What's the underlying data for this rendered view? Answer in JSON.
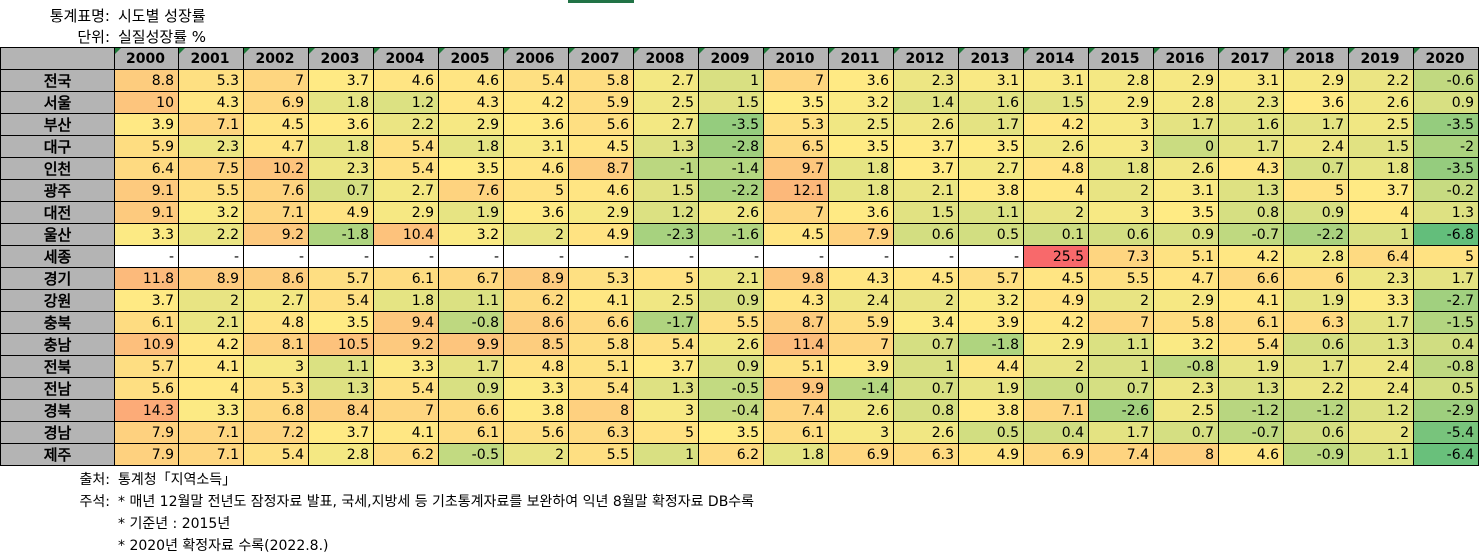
{
  "header": {
    "title_label": "통계표명:",
    "title_value": "시도별 성장률",
    "unit_label": "단위:",
    "unit_value": "실질성장률 %"
  },
  "corner": "",
  "years": [
    "2000",
    "2001",
    "2002",
    "2003",
    "2004",
    "2005",
    "2006",
    "2007",
    "2008",
    "2009",
    "2010",
    "2011",
    "2012",
    "2013",
    "2014",
    "2015",
    "2016",
    "2017",
    "2018",
    "2019",
    "2020"
  ],
  "rows": [
    {
      "region": "전국",
      "values": [
        "8.8",
        "5.3",
        "7",
        "3.7",
        "4.6",
        "4.6",
        "5.4",
        "5.8",
        "2.7",
        "1",
        "7",
        "3.6",
        "2.3",
        "3.1",
        "3.1",
        "2.8",
        "2.9",
        "3.1",
        "2.9",
        "2.2",
        "-0.6"
      ]
    },
    {
      "region": "서울",
      "values": [
        "10",
        "4.3",
        "6.9",
        "1.8",
        "1.2",
        "4.3",
        "4.2",
        "5.9",
        "2.5",
        "1.5",
        "3.5",
        "3.2",
        "1.4",
        "1.6",
        "1.5",
        "2.9",
        "2.8",
        "2.3",
        "3.6",
        "2.6",
        "0.9"
      ]
    },
    {
      "region": "부산",
      "values": [
        "3.9",
        "7.1",
        "4.5",
        "3.6",
        "2.2",
        "2.9",
        "3.6",
        "5.6",
        "2.7",
        "-3.5",
        "5.3",
        "2.5",
        "2.6",
        "1.7",
        "4.2",
        "3",
        "1.7",
        "1.6",
        "1.7",
        "2.5",
        "-3.5"
      ]
    },
    {
      "region": "대구",
      "values": [
        "5.9",
        "2.3",
        "4.7",
        "1.8",
        "5.4",
        "1.8",
        "3.1",
        "4.5",
        "1.3",
        "-2.8",
        "6.5",
        "3.5",
        "3.7",
        "3.5",
        "2.6",
        "3",
        "0",
        "1.7",
        "2.4",
        "1.5",
        "-2"
      ]
    },
    {
      "region": "인천",
      "values": [
        "6.4",
        "7.5",
        "10.2",
        "2.3",
        "5.4",
        "3.5",
        "4.6",
        "8.7",
        "-1",
        "-1.4",
        "9.7",
        "1.8",
        "3.7",
        "2.7",
        "4.8",
        "1.8",
        "2.6",
        "4.3",
        "0.7",
        "1.8",
        "-3.5"
      ]
    },
    {
      "region": "광주",
      "values": [
        "9.1",
        "5.5",
        "7.6",
        "0.7",
        "2.7",
        "7.6",
        "5",
        "4.6",
        "1.5",
        "-2.2",
        "12.1",
        "1.8",
        "2.1",
        "3.8",
        "4",
        "2",
        "3.1",
        "1.3",
        "5",
        "3.7",
        "-0.2"
      ]
    },
    {
      "region": "대전",
      "values": [
        "9.1",
        "3.2",
        "7.1",
        "4.9",
        "2.9",
        "1.9",
        "3.6",
        "2.9",
        "1.2",
        "2.6",
        "7",
        "3.6",
        "1.5",
        "1.1",
        "2",
        "3",
        "3.5",
        "0.8",
        "0.9",
        "4",
        "1.3"
      ]
    },
    {
      "region": "울산",
      "values": [
        "3.3",
        "2.2",
        "9.2",
        "-1.8",
        "10.4",
        "3.2",
        "2",
        "4.9",
        "-2.3",
        "-1.6",
        "4.5",
        "7.9",
        "0.6",
        "0.5",
        "0.1",
        "0.6",
        "0.9",
        "-0.7",
        "-2.2",
        "1",
        "-6.8"
      ]
    },
    {
      "region": "세종",
      "values": [
        "-",
        "-",
        "-",
        "-",
        "-",
        "-",
        "-",
        "-",
        "-",
        "-",
        "-",
        "-",
        "-",
        "-",
        "25.5",
        "7.3",
        "5.1",
        "4.2",
        "2.8",
        "6.4",
        "5"
      ]
    },
    {
      "region": "경기",
      "values": [
        "11.8",
        "8.9",
        "8.6",
        "5.7",
        "6.1",
        "6.7",
        "8.9",
        "5.3",
        "5",
        "2.1",
        "9.8",
        "4.3",
        "4.5",
        "5.7",
        "4.5",
        "5.5",
        "4.7",
        "6.6",
        "6",
        "2.3",
        "1.7"
      ]
    },
    {
      "region": "강원",
      "values": [
        "3.7",
        "2",
        "2.7",
        "5.4",
        "1.8",
        "1.1",
        "6.2",
        "4.1",
        "2.5",
        "0.9",
        "4.3",
        "2.4",
        "2",
        "3.2",
        "4.9",
        "2",
        "2.9",
        "4.1",
        "1.9",
        "3.3",
        "-2.7"
      ]
    },
    {
      "region": "충북",
      "values": [
        "6.1",
        "2.1",
        "4.8",
        "3.5",
        "9.4",
        "-0.8",
        "8.6",
        "6.6",
        "-1.7",
        "5.5",
        "8.7",
        "5.9",
        "3.4",
        "3.9",
        "4.2",
        "7",
        "5.8",
        "6.1",
        "6.3",
        "1.7",
        "-1.5"
      ]
    },
    {
      "region": "충남",
      "values": [
        "10.9",
        "4.2",
        "8.1",
        "10.5",
        "9.2",
        "9.9",
        "8.5",
        "5.8",
        "5.4",
        "2.6",
        "11.4",
        "7",
        "0.7",
        "-1.8",
        "2.9",
        "1.1",
        "3.2",
        "5.4",
        "0.6",
        "1.3",
        "0.4"
      ]
    },
    {
      "region": "전북",
      "values": [
        "5.7",
        "4.1",
        "3",
        "1.1",
        "3.3",
        "1.7",
        "4.8",
        "5.1",
        "3.7",
        "0.9",
        "5.1",
        "3.9",
        "1",
        "4.4",
        "2",
        "1",
        "-0.8",
        "1.9",
        "1.7",
        "2.4",
        "-0.8"
      ]
    },
    {
      "region": "전남",
      "values": [
        "5.6",
        "4",
        "5.3",
        "1.3",
        "5.4",
        "0.9",
        "3.3",
        "5.4",
        "1.3",
        "-0.5",
        "9.9",
        "-1.4",
        "0.7",
        "1.9",
        "0",
        "0.7",
        "2.3",
        "1.3",
        "2.2",
        "2.4",
        "0.5"
      ]
    },
    {
      "region": "경북",
      "values": [
        "14.3",
        "3.3",
        "6.8",
        "8.4",
        "7",
        "6.6",
        "3.8",
        "8",
        "3",
        "-0.4",
        "7.4",
        "2.6",
        "0.8",
        "3.8",
        "7.1",
        "-2.6",
        "2.5",
        "-1.2",
        "-1.2",
        "1.2",
        "-2.9"
      ]
    },
    {
      "region": "경남",
      "values": [
        "7.9",
        "7.1",
        "7.2",
        "3.7",
        "4.1",
        "6.1",
        "5.6",
        "6.3",
        "5",
        "3.5",
        "6.1",
        "3",
        "2.6",
        "0.5",
        "0.4",
        "1.7",
        "0.7",
        "-0.7",
        "0.6",
        "2",
        "-5.4"
      ]
    },
    {
      "region": "제주",
      "values": [
        "7.9",
        "7.1",
        "5.4",
        "2.8",
        "6.2",
        "-0.5",
        "2",
        "5.5",
        "1",
        "6.2",
        "1.8",
        "6.9",
        "6.3",
        "4.9",
        "6.9",
        "7.4",
        "8",
        "4.6",
        "-0.9",
        "1.1",
        "-6.4"
      ]
    }
  ],
  "footer": {
    "source_label": "출처:",
    "source_value": "통계청「지역소득」",
    "note_label": "주석:",
    "notes": [
      "* 매년 12월말 전년도 잠정자료 발표, 국세,지방세 등 기초통계자료를 보완하여 익년 8월말 확정자료 DB수록",
      "* 기준년 : 2015년",
      "* 2020년 확정자료 수록(2022.8.)"
    ]
  },
  "colors": {
    "header_bg": "#b4b4b4",
    "heat_high": "#f8696b",
    "heat_mid": "#ffeb84",
    "heat_low": "#63be7b",
    "empty_cell": "#ffffff",
    "selection_accent": "#217346"
  }
}
